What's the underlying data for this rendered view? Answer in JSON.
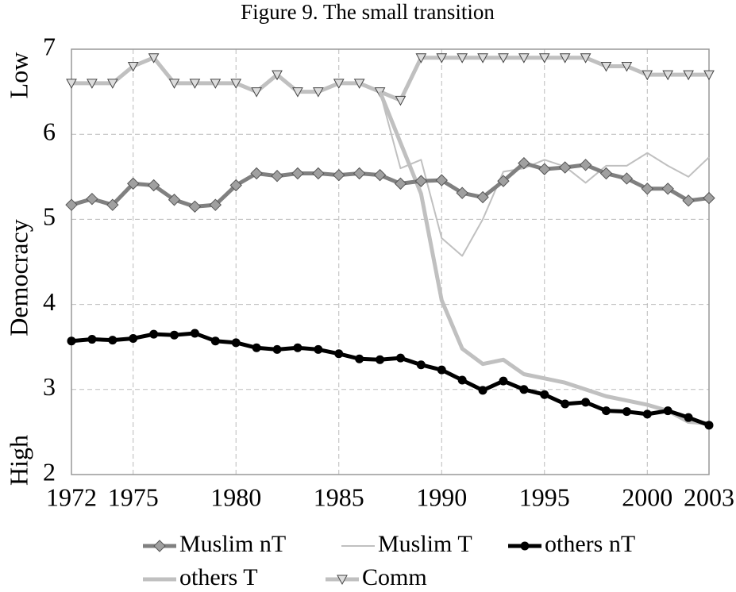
{
  "chart_data": {
    "type": "line",
    "title": "Figure 9. The small transition",
    "ylabel": [
      "Low",
      "Democracy",
      "High"
    ],
    "x": [
      1972,
      1973,
      1974,
      1975,
      1976,
      1977,
      1978,
      1979,
      1980,
      1981,
      1982,
      1983,
      1984,
      1985,
      1986,
      1987,
      1988,
      1989,
      1990,
      1991,
      1992,
      1993,
      1994,
      1995,
      1996,
      1997,
      1998,
      1999,
      2000,
      2001,
      2002,
      2003
    ],
    "xlim": [
      1972,
      2003
    ],
    "xticks": [
      1972,
      1975,
      1980,
      1985,
      1990,
      1995,
      2000,
      2003
    ],
    "ylim": [
      2,
      7
    ],
    "yticks": [
      2,
      3,
      4,
      5,
      6,
      7
    ],
    "grid": true,
    "legend": "bottom",
    "series": [
      {
        "name": "Muslim nT",
        "color": "#808080",
        "marker": "diamond",
        "linewidth": 5,
        "values": [
          5.17,
          5.24,
          5.17,
          5.42,
          5.4,
          5.23,
          5.15,
          5.17,
          5.4,
          5.54,
          5.51,
          5.54,
          5.54,
          5.52,
          5.54,
          5.52,
          5.42,
          5.45,
          5.46,
          5.31,
          5.26,
          5.45,
          5.66,
          5.59,
          5.61,
          5.64,
          5.54,
          5.48,
          5.36,
          5.36,
          5.22,
          5.25
        ]
      },
      {
        "name": "Muslim T",
        "color": "#c0c0c0",
        "marker": "none",
        "linewidth": 2,
        "values": [
          null,
          null,
          null,
          null,
          null,
          null,
          null,
          null,
          null,
          null,
          null,
          null,
          null,
          null,
          null,
          6.5,
          5.6,
          5.7,
          4.78,
          4.57,
          5.0,
          5.56,
          5.6,
          5.7,
          5.62,
          5.43,
          5.63,
          5.63,
          5.78,
          5.63,
          5.5,
          5.73
        ]
      },
      {
        "name": "others nT",
        "color": "#000000",
        "marker": "circle",
        "linewidth": 5,
        "values": [
          3.57,
          3.59,
          3.58,
          3.6,
          3.65,
          3.64,
          3.66,
          3.57,
          3.55,
          3.49,
          3.47,
          3.49,
          3.47,
          3.42,
          3.36,
          3.35,
          3.37,
          3.29,
          3.23,
          3.11,
          2.99,
          3.1,
          3.0,
          2.94,
          2.83,
          2.85,
          2.75,
          2.74,
          2.71,
          2.75,
          2.67,
          2.58
        ]
      },
      {
        "name": "others T",
        "color": "#c0c0c0",
        "marker": "none",
        "linewidth": 5,
        "values": [
          null,
          null,
          null,
          null,
          null,
          null,
          null,
          null,
          null,
          null,
          null,
          null,
          null,
          null,
          null,
          6.5,
          5.9,
          5.3,
          4.05,
          3.48,
          3.3,
          3.35,
          3.18,
          3.13,
          3.08,
          3.0,
          2.92,
          2.87,
          2.82,
          2.75,
          2.62,
          2.6
        ]
      },
      {
        "name": "Comm",
        "color": "#c0c0c0",
        "marker": "triangle-down",
        "linewidth": 5,
        "values": [
          6.6,
          6.6,
          6.6,
          6.8,
          6.9,
          6.6,
          6.6,
          6.6,
          6.6,
          6.5,
          6.7,
          6.5,
          6.5,
          6.6,
          6.6,
          6.5,
          6.4,
          6.9,
          6.9,
          6.9,
          6.9,
          6.9,
          6.9,
          6.9,
          6.9,
          6.9,
          6.8,
          6.8,
          6.7,
          6.7,
          6.7,
          6.7
        ]
      }
    ]
  }
}
